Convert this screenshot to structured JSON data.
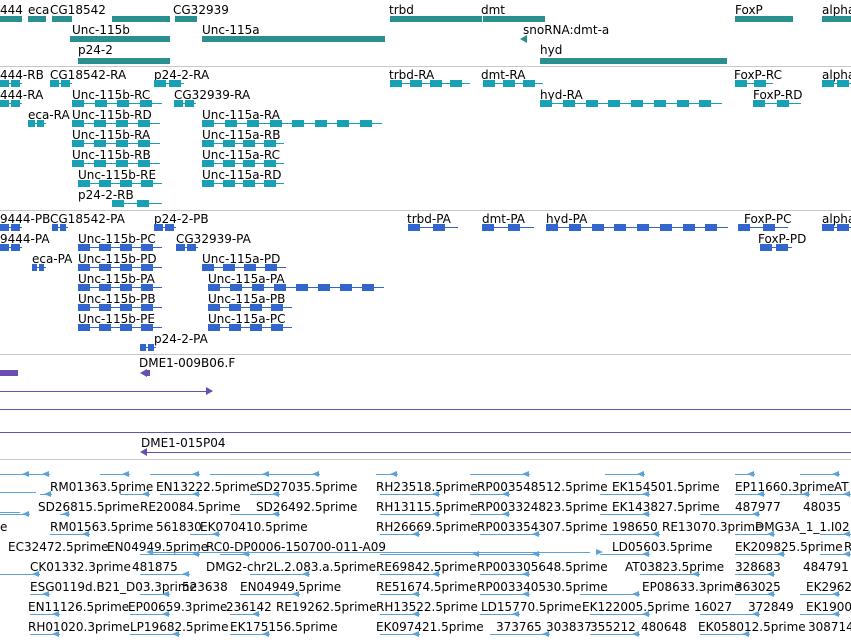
{
  "colors": {
    "gene": "#2a8f8f",
    "transcript": "#1aa0b5",
    "protein": "#3366cc",
    "clone": "#6a4fb3",
    "est": "#5ba3d6"
  },
  "gene_track": {
    "labels": [
      "444",
      "eca",
      "CG18542",
      "Unc-115b",
      "p24-2",
      "CG32939",
      "Unc-115a",
      "trbd",
      "dmt",
      "snoRNA:dmt-a",
      "hyd",
      "FoxP",
      "alpha"
    ]
  },
  "transcript_track": {
    "labels": [
      "444-RB",
      "CG18542-RA",
      "p24-2-RA",
      "444-RA",
      "Unc-115b-RC",
      "CG32939-RA",
      "eca-RA",
      "Unc-115b-RD",
      "Unc-115a-RA",
      "Unc-115b-RA",
      "Unc-115a-RB",
      "Unc-115b-RB",
      "Unc-115a-RC",
      "Unc-115b-RE",
      "Unc-115a-RD",
      "p24-2-RB",
      "trbd-RA",
      "dmt-RA",
      "hyd-RA",
      "FoxP-RC",
      "FoxP-RD",
      "alpha"
    ]
  },
  "protein_track": {
    "labels": [
      "9444-PB",
      "CG18542-PA",
      "p24-2-PB",
      "9444-PA",
      "Unc-115b-PC",
      "CG32939-PA",
      "eca-PA",
      "Unc-115b-PD",
      "Unc-115a-PD",
      "Unc-115b-PA",
      "Unc-115a-PA",
      "Unc-115b-PB",
      "Unc-115a-PB",
      "Unc-115b-PE",
      "Unc-115a-PC",
      "p24-2-PA",
      "trbd-PA",
      "dmt-PA",
      "hyd-PA",
      "FoxP-PC",
      "FoxP-PD",
      "alpha"
    ]
  },
  "clone_track": {
    "labels": [
      "DME1-009B06.F",
      "DME1-015P04"
    ]
  },
  "est_track": {
    "labels": [
      "RM01363.5prime",
      "EN13222.5prime",
      "SD27035.5prime",
      "RH23518.5prime",
      "RP003548512.5prime",
      "EK154501.5prime",
      "EP11660.3prime",
      "AT",
      "SD26815.5prime",
      "RE20084.5prime",
      "SD26492.5prime",
      "RH13115.5prime",
      "RP003324823.5prime",
      "EK143827.5prime",
      "487977",
      "48035",
      "e",
      "RM01563.5prime",
      "561830",
      "EK070410.5prime",
      "RH26669.5prime",
      "RP003354307.5prime",
      "198650",
      "RE13070.3prime",
      "DMG3A_1_1.I02",
      "EC32472.5prime",
      "EN04949.5prime",
      "RC0-DP0006-150700-011-A09",
      "LD05603.5prime",
      "EK209825.5prime",
      "R",
      "CK01332.3prime",
      "481875",
      "DMG2-chr2L.2.083.a.5prime",
      "RE69842.5prime",
      "RP003305648.5prime",
      "AT03823.5prime",
      "328683",
      "484791",
      "ESG0119d.B21_D03.3prime",
      "523638",
      "EN04949.5prime",
      "RE51674.5prime",
      "RP003340530.5prime",
      "EP08633.3prime",
      "363025",
      "EK2962",
      "EN11126.5prime",
      "EP00659.3prime",
      "236142",
      "RE19262.5prime",
      "RH13522.5prime",
      "LD15770.5prime",
      "EK122005.5prime",
      "16027",
      "372849",
      "EK1900",
      "RH01020.3prime",
      "LP19682.5prime",
      "EK175156.5prime",
      "EK097421.5prime",
      "373765",
      "303837",
      "355212",
      "480648",
      "EK058012.5prime",
      "308714"
    ]
  }
}
